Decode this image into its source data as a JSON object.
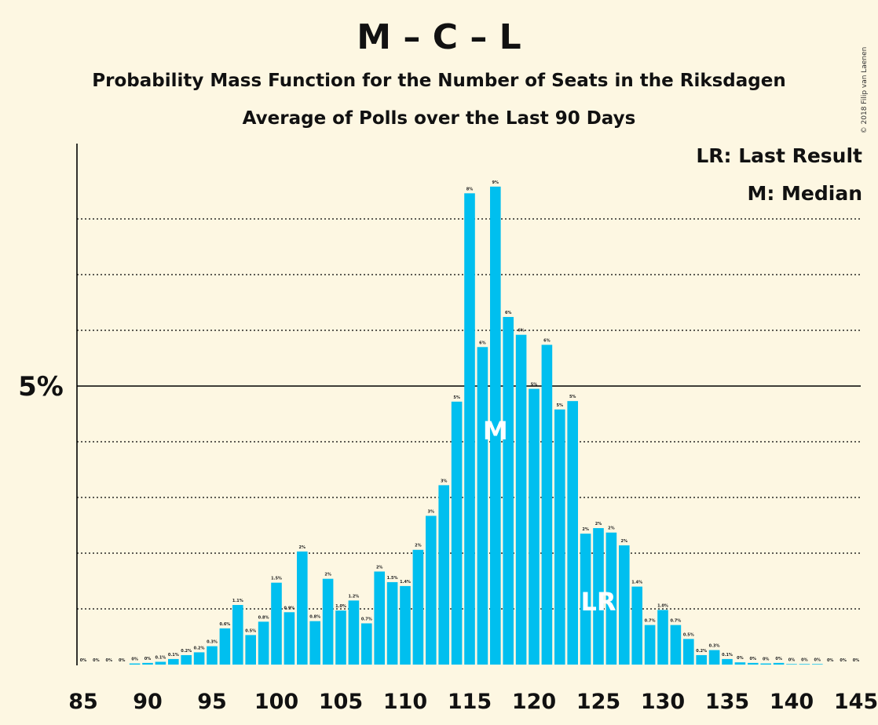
{
  "title": "M – C – L",
  "subtitle": "Probability Mass Function for the Number of Seats in the Riksdagen",
  "subtitle2": "Average of Polls over the Last 90 Days",
  "copyright": "© 2018 Filip van Laenen",
  "legend": {
    "last_result": "LR: Last Result",
    "median": "M: Median"
  },
  "colors": {
    "bar": "#00bfef",
    "background": "#fdf7e2",
    "axis": "#000000"
  },
  "chart_data": {
    "type": "bar",
    "x": [
      85,
      86,
      87,
      88,
      89,
      90,
      91,
      92,
      93,
      94,
      95,
      96,
      97,
      98,
      99,
      100,
      101,
      102,
      103,
      104,
      105,
      106,
      107,
      108,
      109,
      110,
      111,
      112,
      113,
      114,
      115,
      116,
      117,
      118,
      119,
      120,
      121,
      122,
      123,
      124,
      125,
      126,
      127,
      128,
      129,
      130,
      131,
      132,
      133,
      134,
      135,
      136,
      137,
      138,
      139,
      140,
      141,
      142,
      143,
      144,
      145
    ],
    "values": [
      0,
      0,
      0,
      0,
      0.02,
      0.03,
      0.05,
      0.1,
      0.17,
      0.22,
      0.33,
      0.65,
      1.07,
      0.53,
      0.77,
      1.47,
      0.94,
      2.03,
      0.78,
      1.54,
      0.97,
      1.15,
      0.74,
      1.67,
      1.48,
      1.41,
      2.06,
      2.67,
      3.22,
      4.72,
      8.46,
      5.7,
      8.58,
      6.24,
      5.92,
      4.95,
      5.74,
      4.58,
      4.73,
      2.35,
      2.45,
      2.37,
      2.14,
      1.4,
      0.71,
      0.98,
      0.71,
      0.46,
      0.17,
      0.26,
      0.1,
      0.04,
      0.03,
      0.02,
      0.03,
      0.01,
      0.01,
      0.01,
      0,
      0,
      0
    ],
    "labels": [
      "0%",
      "0%",
      "0%",
      "0%",
      "0%",
      "0%",
      "0.1%",
      "0.1%",
      "0.2%",
      "0.2%",
      "0.3%",
      "0.6%",
      "1.1%",
      "0.5%",
      "0.8%",
      "1.5%",
      "0.9%",
      "2%",
      "0.8%",
      "2%",
      "1.0%",
      "1.2%",
      "0.7%",
      "2%",
      "1.5%",
      "1.4%",
      "2%",
      "3%",
      "3%",
      "5%",
      "8%",
      "6%",
      "9%",
      "6%",
      "6%",
      "5%",
      "6%",
      "5%",
      "5%",
      "2%",
      "2%",
      "2%",
      "2%",
      "1.4%",
      "0.7%",
      "1.0%",
      "0.7%",
      "0.5%",
      "0.2%",
      "0.3%",
      "0.1%",
      "0%",
      "0%",
      "0%",
      "0%",
      "0%",
      "0%",
      "0%",
      "0%",
      "0%",
      "0%"
    ],
    "x_tick_labels": [
      "85",
      "90",
      "95",
      "100",
      "105",
      "110",
      "115",
      "120",
      "125",
      "130",
      "135",
      "140",
      "145"
    ],
    "y_tick_labels": [
      "5%"
    ],
    "ylim": [
      0,
      9.3
    ],
    "y_gridlines": [
      1,
      2,
      3,
      4,
      6,
      7,
      8
    ],
    "median_seat": 117,
    "median_marker": "M",
    "last_result_seat": 125,
    "last_result_marker": "LR"
  }
}
